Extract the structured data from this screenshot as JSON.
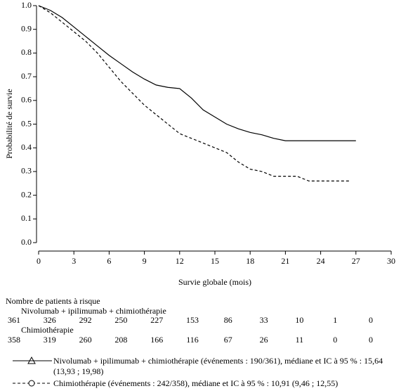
{
  "chart_data": {
    "type": "line",
    "xlabel": "Survie globale (mois)",
    "ylabel": "Probabilité de survie",
    "xlim": [
      0,
      30
    ],
    "ylim": [
      0,
      1
    ],
    "xticks": [
      0,
      3,
      6,
      9,
      12,
      15,
      18,
      21,
      24,
      27,
      30
    ],
    "yticks": [
      {
        "value": 0,
        "label": "0.0"
      },
      0.1,
      0.2,
      0.3,
      0.4,
      0.5,
      0.6,
      0.7,
      0.8,
      0.9,
      {
        "value": 1,
        "label": "1.0"
      }
    ],
    "series": [
      {
        "name": "Nivolumab + ipilimumab + chimiothérapie",
        "color": "#000000",
        "dashed": false,
        "x": [
          0,
          1,
          2,
          3,
          4,
          5,
          6,
          7,
          8,
          9,
          10,
          11,
          12,
          13,
          14,
          15,
          16,
          17,
          18,
          19,
          20,
          21,
          24,
          27
        ],
        "values": [
          1.0,
          0.98,
          0.95,
          0.91,
          0.87,
          0.83,
          0.79,
          0.755,
          0.72,
          0.69,
          0.665,
          0.655,
          0.65,
          0.61,
          0.56,
          0.53,
          0.5,
          0.48,
          0.465,
          0.455,
          0.44,
          0.43,
          0.43,
          0.43
        ],
        "at_risk": [
          361,
          326,
          292,
          250,
          227,
          153,
          86,
          33,
          10,
          1,
          0
        ]
      },
      {
        "name": "Chimiothérapie",
        "color": "#000000",
        "dashed": true,
        "x": [
          0,
          1,
          2,
          3,
          4,
          5,
          6,
          7,
          8,
          9,
          10,
          11,
          12,
          13,
          14,
          15,
          16,
          17,
          18,
          19,
          20,
          22,
          23,
          26.5
        ],
        "values": [
          1.0,
          0.97,
          0.93,
          0.89,
          0.85,
          0.8,
          0.74,
          0.68,
          0.63,
          0.58,
          0.54,
          0.5,
          0.46,
          0.44,
          0.42,
          0.4,
          0.38,
          0.34,
          0.31,
          0.3,
          0.28,
          0.28,
          0.26,
          0.26
        ],
        "at_risk": [
          358,
          319,
          260,
          208,
          166,
          116,
          67,
          26,
          11,
          0,
          0
        ]
      }
    ],
    "risk_table_title": "Nombre de patients à risque",
    "legend": [
      "Nivolumab + ipilimumab + chimiothérapie (événements : 190/361), médiane et IC à 95 % : 15,64 (13,93 ; 19,98)",
      "Chimiothérapie (événements : 242/358), médiane et IC à 95 % : 10,91 (9,46 ; 12,55)"
    ]
  }
}
